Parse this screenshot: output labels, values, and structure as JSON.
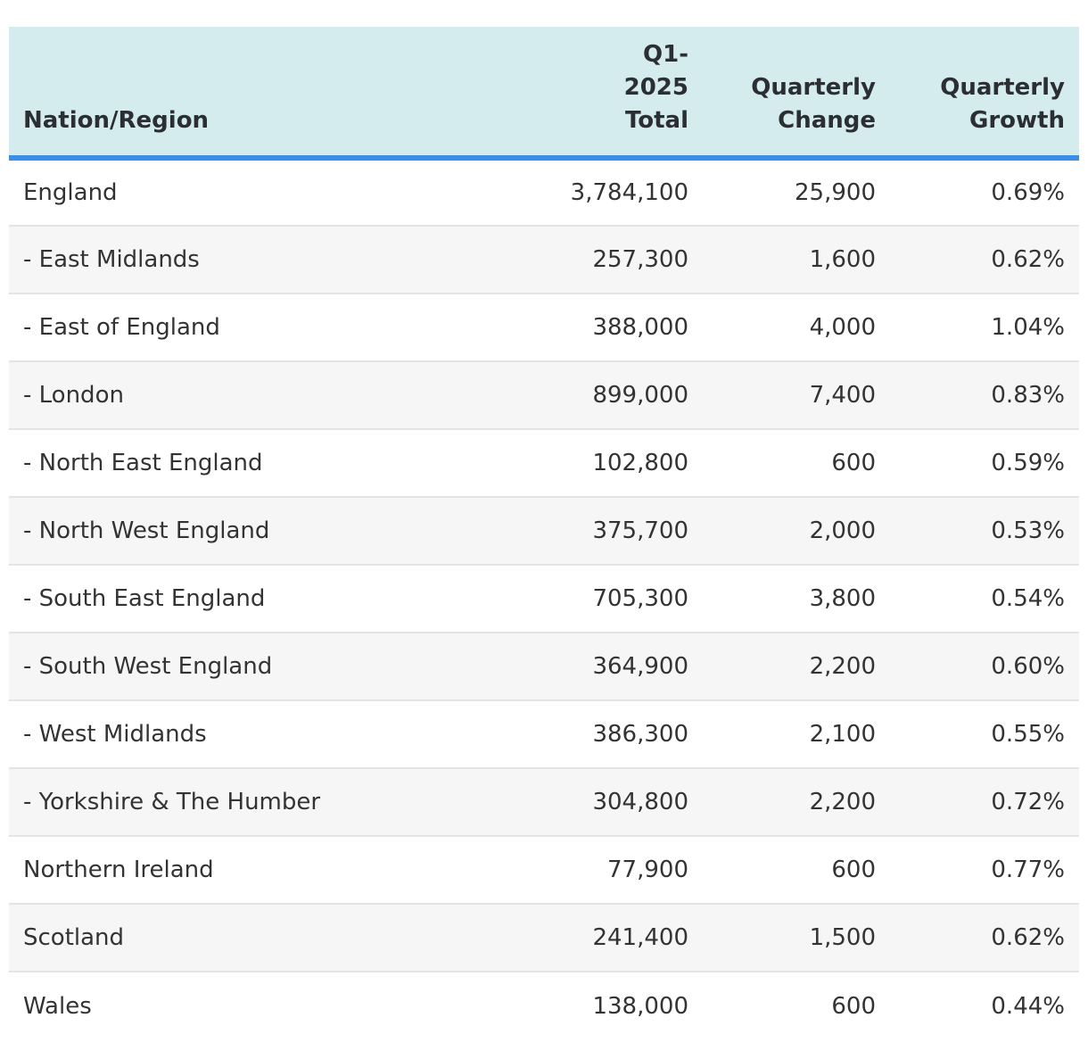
{
  "table": {
    "headers": {
      "region": "Nation/Region",
      "total_line1": "Q1-",
      "total_line2": "2025",
      "total_line3": "Total",
      "change_line1": "Quarterly",
      "change_line2": "Change",
      "growth_line1": "Quarterly",
      "growth_line2": "Growth"
    },
    "rows": [
      {
        "region": "England",
        "total": "3,784,100",
        "change": "25,900",
        "growth": "0.69%"
      },
      {
        "region": "- East Midlands",
        "total": "257,300",
        "change": "1,600",
        "growth": "0.62%"
      },
      {
        "region": "- East of England",
        "total": "388,000",
        "change": "4,000",
        "growth": "1.04%"
      },
      {
        "region": "- London",
        "total": "899,000",
        "change": "7,400",
        "growth": "0.83%"
      },
      {
        "region": "- North East England",
        "total": "102,800",
        "change": "600",
        "growth": "0.59%"
      },
      {
        "region": "- North West England",
        "total": "375,700",
        "change": "2,000",
        "growth": "0.53%"
      },
      {
        "region": "- South East England",
        "total": "705,300",
        "change": "3,800",
        "growth": "0.54%"
      },
      {
        "region": "- South West England",
        "total": "364,900",
        "change": "2,200",
        "growth": "0.60%"
      },
      {
        "region": "- West Midlands",
        "total": "386,300",
        "change": "2,100",
        "growth": "0.55%"
      },
      {
        "region": "- Yorkshire & The Humber",
        "total": "304,800",
        "change": "2,200",
        "growth": "0.72%"
      },
      {
        "region": "Northern Ireland",
        "total": "77,900",
        "change": "600",
        "growth": "0.77%"
      },
      {
        "region": "Scotland",
        "total": "241,400",
        "change": "1,500",
        "growth": "0.62%"
      },
      {
        "region": "Wales",
        "total": "138,000",
        "change": "600",
        "growth": "0.44%"
      }
    ]
  },
  "colors": {
    "header_bg": "#d5ecef",
    "header_rule": "#3a8ee6",
    "stripe": "#f6f6f6",
    "text": "#333333"
  }
}
